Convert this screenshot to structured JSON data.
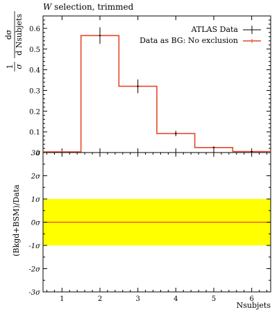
{
  "chart_data": [
    {
      "type": "step",
      "title": "W selection, trimmed",
      "title_prefix": "W",
      "title_rest": " selection, trimmed",
      "ylabel": {
        "prefix": "1",
        "sigma": "σ",
        "num": "dσ",
        "den": "d Nsubjets"
      },
      "xlim": [
        0.5,
        6.5
      ],
      "ylim": [
        0,
        0.66
      ],
      "yticks": [
        {
          "value": 0.1,
          "label": "0.1"
        },
        {
          "value": 0.2,
          "label": "0.2"
        },
        {
          "value": 0.3,
          "label": "0.3"
        },
        {
          "value": 0.4,
          "label": "0.4"
        },
        {
          "value": 0.5,
          "label": "0.5"
        },
        {
          "value": 0.6,
          "label": "0.6"
        }
      ],
      "bin_edges": [
        0.5,
        1.5,
        2.5,
        3.5,
        4.5,
        5.5,
        6.5
      ],
      "series": [
        {
          "name": "ATLAS Data",
          "color": "#000000",
          "style": "points",
          "x": [
            2,
            3,
            4,
            5,
            6
          ],
          "y": [
            0.565,
            0.32,
            0.092,
            0.024,
            0.005
          ],
          "err": [
            0.04,
            0.033,
            0.013,
            0.006,
            0.003
          ]
        },
        {
          "name": "Data as BG: No exclusion",
          "color": "#e8452a",
          "style": "step",
          "values": [
            0.003,
            0.565,
            0.32,
            0.092,
            0.024,
            0.005
          ]
        }
      ],
      "legend_position": "top-right"
    },
    {
      "type": "band",
      "ylabel": "(Bkgd+BSM)/Data",
      "xlabel": "Nsubjets",
      "xlim": [
        0.5,
        6.5
      ],
      "ylim": [
        -3,
        3
      ],
      "xticks": [
        {
          "value": 1,
          "label": "1"
        },
        {
          "value": 2,
          "label": "2"
        },
        {
          "value": 3,
          "label": "3"
        },
        {
          "value": 4,
          "label": "4"
        },
        {
          "value": 5,
          "label": "5"
        },
        {
          "value": 6,
          "label": "6"
        }
      ],
      "yticks": [
        {
          "value": 3,
          "label": "3σ"
        },
        {
          "value": 2,
          "label": "2σ"
        },
        {
          "value": 1,
          "label": "1σ"
        },
        {
          "value": 0,
          "label": "0σ"
        },
        {
          "value": -1,
          "label": "-1σ"
        },
        {
          "value": -2,
          "label": "-2σ"
        },
        {
          "value": -3,
          "label": "-3σ"
        }
      ],
      "band": {
        "low": -1,
        "high": 1,
        "color": "#ffff00"
      },
      "line": {
        "value": 0,
        "color": "#e8452a"
      }
    }
  ]
}
